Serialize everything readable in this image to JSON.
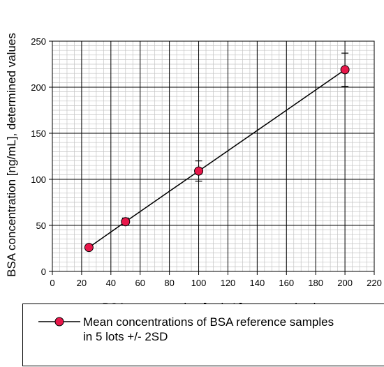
{
  "chart_data": {
    "type": "scatter",
    "xlabel": "BSA concentration [ng/mL], expected values",
    "ylabel": "BSA concentration [ng/mL], determined values",
    "xlim": [
      0,
      220
    ],
    "ylim": [
      0,
      250
    ],
    "x_ticks": [
      0,
      20,
      40,
      60,
      80,
      100,
      120,
      140,
      160,
      180,
      200,
      220
    ],
    "y_ticks": [
      0,
      50,
      100,
      150,
      200,
      250
    ],
    "x_tick_labels": [
      "0",
      "20",
      "40",
      "60",
      "80",
      "100",
      "120",
      "140",
      "160",
      "180",
      "200",
      "220"
    ],
    "y_tick_labels": [
      "0",
      "50",
      "100",
      "150",
      "200",
      "250"
    ],
    "grid": "major and minor",
    "legend_position": "bottom",
    "series": [
      {
        "name": "Mean concentrations of BSA reference samples in 5 lots +/- 2SD",
        "marker_color": "#e8174a",
        "line_color": "#000000",
        "points": [
          {
            "x": 25,
            "y": 26,
            "err": 0
          },
          {
            "x": 50,
            "y": 54,
            "err": 4
          },
          {
            "x": 100,
            "y": 109,
            "err": 11
          },
          {
            "x": 200,
            "y": 219,
            "err": 18
          }
        ]
      }
    ],
    "legend": {
      "line1": "Mean concentrations of BSA reference samples",
      "line2": "in 5 lots +/- 2SD"
    }
  }
}
